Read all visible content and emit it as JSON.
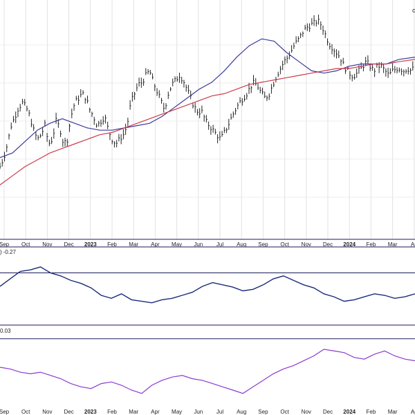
{
  "chart_data": [
    {
      "panel": "price",
      "type": "line",
      "title": "",
      "x_ticks": [
        {
          "label": "Sep",
          "year": false
        },
        {
          "label": "Oct",
          "year": false
        },
        {
          "label": "Nov",
          "year": false
        },
        {
          "label": "Dec",
          "year": false
        },
        {
          "label": "2023",
          "year": true
        },
        {
          "label": "Feb",
          "year": false
        },
        {
          "label": "Mar",
          "year": false
        },
        {
          "label": "Apr",
          "year": false
        },
        {
          "label": "May",
          "year": false
        },
        {
          "label": "Jun",
          "year": false
        },
        {
          "label": "Jul",
          "year": false
        },
        {
          "label": "Aug",
          "year": false
        },
        {
          "label": "Sep",
          "year": false
        },
        {
          "label": "Oct",
          "year": false
        },
        {
          "label": "Nov",
          "year": false
        },
        {
          "label": "Dec",
          "year": false
        },
        {
          "label": "2024",
          "year": true
        },
        {
          "label": "Feb",
          "year": false
        },
        {
          "label": "Mar",
          "year": false
        },
        {
          "label": "Ap",
          "year": false
        }
      ],
      "ylim": [
        0,
        100
      ],
      "price_close": [
        [
          0,
          30
        ],
        [
          3,
          34
        ],
        [
          6,
          40
        ],
        [
          9,
          48
        ],
        [
          12,
          52
        ],
        [
          15,
          56
        ],
        [
          18,
          58
        ],
        [
          21,
          56
        ],
        [
          24,
          52
        ],
        [
          27,
          46
        ],
        [
          30,
          42
        ],
        [
          33,
          44
        ],
        [
          36,
          48
        ],
        [
          39,
          40
        ],
        [
          42,
          42
        ],
        [
          45,
          50
        ],
        [
          48,
          47
        ],
        [
          51,
          40
        ],
        [
          54,
          42
        ],
        [
          57,
          52
        ],
        [
          60,
          58
        ],
        [
          63,
          60
        ],
        [
          66,
          62
        ],
        [
          69,
          60
        ],
        [
          72,
          55
        ],
        [
          75,
          52
        ],
        [
          78,
          48
        ],
        [
          81,
          50
        ],
        [
          84,
          52
        ],
        [
          87,
          46
        ],
        [
          90,
          42
        ],
        [
          93,
          40
        ],
        [
          96,
          42
        ],
        [
          99,
          44
        ],
        [
          102,
          48
        ],
        [
          105,
          58
        ],
        [
          108,
          62
        ],
        [
          111,
          66
        ],
        [
          114,
          67
        ],
        [
          117,
          70
        ],
        [
          120,
          72
        ],
        [
          123,
          67
        ],
        [
          126,
          63
        ],
        [
          129,
          59
        ],
        [
          132,
          55
        ],
        [
          135,
          62
        ],
        [
          138,
          66
        ],
        [
          141,
          68
        ],
        [
          144,
          70
        ],
        [
          147,
          68
        ],
        [
          150,
          64
        ],
        [
          153,
          60
        ],
        [
          156,
          56
        ],
        [
          159,
          54
        ],
        [
          162,
          54
        ],
        [
          165,
          50
        ],
        [
          168,
          48
        ],
        [
          171,
          46
        ],
        [
          174,
          44
        ],
        [
          177,
          42
        ],
        [
          180,
          45
        ],
        [
          183,
          48
        ],
        [
          186,
          52
        ],
        [
          189,
          55
        ],
        [
          192,
          58
        ],
        [
          195,
          60
        ],
        [
          198,
          62
        ],
        [
          201,
          65
        ],
        [
          204,
          67
        ],
        [
          207,
          65
        ],
        [
          210,
          62
        ],
        [
          213,
          60
        ],
        [
          216,
          62
        ],
        [
          219,
          66
        ],
        [
          222,
          70
        ],
        [
          225,
          73
        ],
        [
          228,
          76
        ],
        [
          231,
          78
        ],
        [
          234,
          81
        ],
        [
          237,
          84
        ],
        [
          240,
          86
        ],
        [
          243,
          89
        ],
        [
          246,
          91
        ],
        [
          249,
          92
        ],
        [
          252,
          93
        ],
        [
          255,
          94
        ],
        [
          258,
          92
        ],
        [
          261,
          88
        ],
        [
          264,
          84
        ],
        [
          267,
          82
        ],
        [
          270,
          80
        ],
        [
          273,
          78
        ],
        [
          276,
          74
        ],
        [
          279,
          72
        ],
        [
          282,
          70
        ],
        [
          285,
          70
        ],
        [
          288,
          72
        ],
        [
          291,
          74
        ],
        [
          294,
          76
        ],
        [
          297,
          74
        ],
        [
          300,
          72
        ],
        [
          303,
          74
        ],
        [
          306,
          74
        ],
        [
          309,
          72
        ],
        [
          312,
          70
        ],
        [
          315,
          72
        ],
        [
          318,
          73
        ],
        [
          321,
          73
        ],
        [
          324,
          72
        ],
        [
          327,
          73
        ],
        [
          330,
          72
        ],
        [
          333,
          74
        ]
      ],
      "series": [
        {
          "name": "",
          "color": "#3a3a9a",
          "values": [
            [
              0,
              34
            ],
            [
              10,
              36
            ],
            [
              20,
              41
            ],
            [
              30,
              46
            ],
            [
              40,
              49
            ],
            [
              50,
              51
            ],
            [
              60,
              49
            ],
            [
              70,
              47
            ],
            [
              80,
              46
            ],
            [
              90,
              46
            ],
            [
              100,
              47
            ],
            [
              110,
              48
            ],
            [
              120,
              49
            ],
            [
              130,
              52
            ],
            [
              140,
              56
            ],
            [
              150,
              60
            ],
            [
              160,
              64
            ],
            [
              170,
              67
            ],
            [
              180,
              72
            ],
            [
              190,
              78
            ],
            [
              200,
              83
            ],
            [
              210,
              86
            ],
            [
              220,
              85
            ],
            [
              230,
              80
            ],
            [
              240,
              76
            ],
            [
              250,
              72
            ],
            [
              260,
              71
            ],
            [
              270,
              72
            ],
            [
              280,
              74
            ],
            [
              290,
              75
            ],
            [
              300,
              75
            ],
            [
              310,
              75
            ],
            [
              320,
              77
            ],
            [
              333,
              78
            ]
          ]
        },
        {
          "name": "",
          "color": "#cc3a4a",
          "values": [
            [
              0,
              22
            ],
            [
              10,
              26
            ],
            [
              20,
              30
            ],
            [
              30,
              33
            ],
            [
              40,
              36
            ],
            [
              50,
              38
            ],
            [
              60,
              40
            ],
            [
              70,
              42
            ],
            [
              80,
              44
            ],
            [
              90,
              45
            ],
            [
              100,
              47
            ],
            [
              110,
              49
            ],
            [
              120,
              51
            ],
            [
              130,
              53
            ],
            [
              140,
              55
            ],
            [
              150,
              57
            ],
            [
              160,
              59
            ],
            [
              170,
              61
            ],
            [
              180,
              62
            ],
            [
              190,
              64
            ],
            [
              200,
              66
            ],
            [
              210,
              67
            ],
            [
              220,
              68
            ],
            [
              230,
              69
            ],
            [
              240,
              70
            ],
            [
              250,
              71
            ],
            [
              260,
              72
            ],
            [
              270,
              73
            ],
            [
              280,
              73
            ],
            [
              290,
              74
            ],
            [
              300,
              75
            ],
            [
              310,
              75
            ],
            [
              320,
              76
            ],
            [
              333,
              77
            ]
          ]
        }
      ]
    },
    {
      "panel": "indicator-1",
      "type": "line",
      "label": "-0.27",
      "label_prefix": ")",
      "color": "#1a2a7a",
      "ylim": [
        0,
        100
      ],
      "reference": 68,
      "values": [
        [
          0,
          50
        ],
        [
          10,
          60
        ],
        [
          20,
          70
        ],
        [
          30,
          72
        ],
        [
          40,
          76
        ],
        [
          50,
          68
        ],
        [
          60,
          64
        ],
        [
          70,
          58
        ],
        [
          80,
          54
        ],
        [
          90,
          48
        ],
        [
          100,
          38
        ],
        [
          110,
          34
        ],
        [
          120,
          40
        ],
        [
          130,
          32
        ],
        [
          140,
          30
        ],
        [
          150,
          28
        ],
        [
          160,
          32
        ],
        [
          170,
          34
        ],
        [
          180,
          38
        ],
        [
          190,
          42
        ],
        [
          200,
          50
        ],
        [
          210,
          55
        ],
        [
          220,
          52
        ],
        [
          230,
          49
        ],
        [
          240,
          44
        ],
        [
          250,
          46
        ],
        [
          260,
          52
        ],
        [
          270,
          60
        ],
        [
          280,
          64
        ],
        [
          290,
          58
        ],
        [
          300,
          52
        ],
        [
          310,
          48
        ],
        [
          320,
          40
        ],
        [
          330,
          36
        ],
        [
          340,
          30
        ],
        [
          350,
          32
        ],
        [
          360,
          36
        ],
        [
          370,
          40
        ],
        [
          380,
          38
        ],
        [
          390,
          34
        ],
        [
          400,
          36
        ],
        [
          410,
          40
        ]
      ]
    },
    {
      "panel": "indicator-2",
      "type": "line",
      "label": "0.03",
      "color": "#8a3ad0",
      "ylim": [
        0,
        100
      ],
      "reference": 85,
      "values": [
        [
          0,
          50
        ],
        [
          10,
          48
        ],
        [
          20,
          44
        ],
        [
          30,
          42
        ],
        [
          40,
          44
        ],
        [
          50,
          40
        ],
        [
          60,
          36
        ],
        [
          70,
          30
        ],
        [
          80,
          26
        ],
        [
          90,
          24
        ],
        [
          100,
          30
        ],
        [
          110,
          32
        ],
        [
          120,
          28
        ],
        [
          130,
          22
        ],
        [
          140,
          18
        ],
        [
          150,
          28
        ],
        [
          160,
          34
        ],
        [
          170,
          38
        ],
        [
          180,
          40
        ],
        [
          190,
          36
        ],
        [
          200,
          34
        ],
        [
          210,
          30
        ],
        [
          220,
          26
        ],
        [
          230,
          22
        ],
        [
          240,
          18
        ],
        [
          250,
          26
        ],
        [
          260,
          34
        ],
        [
          270,
          42
        ],
        [
          280,
          48
        ],
        [
          290,
          52
        ],
        [
          300,
          58
        ],
        [
          310,
          64
        ],
        [
          320,
          72
        ],
        [
          330,
          70
        ],
        [
          340,
          68
        ],
        [
          350,
          62
        ],
        [
          360,
          60
        ],
        [
          370,
          66
        ],
        [
          380,
          70
        ],
        [
          390,
          64
        ],
        [
          400,
          60
        ],
        [
          410,
          58
        ]
      ]
    }
  ],
  "colors": {
    "background": "#ffffff",
    "axis": "#1a1a5a",
    "grid": "#dcdcdc",
    "bars": "#222222"
  }
}
